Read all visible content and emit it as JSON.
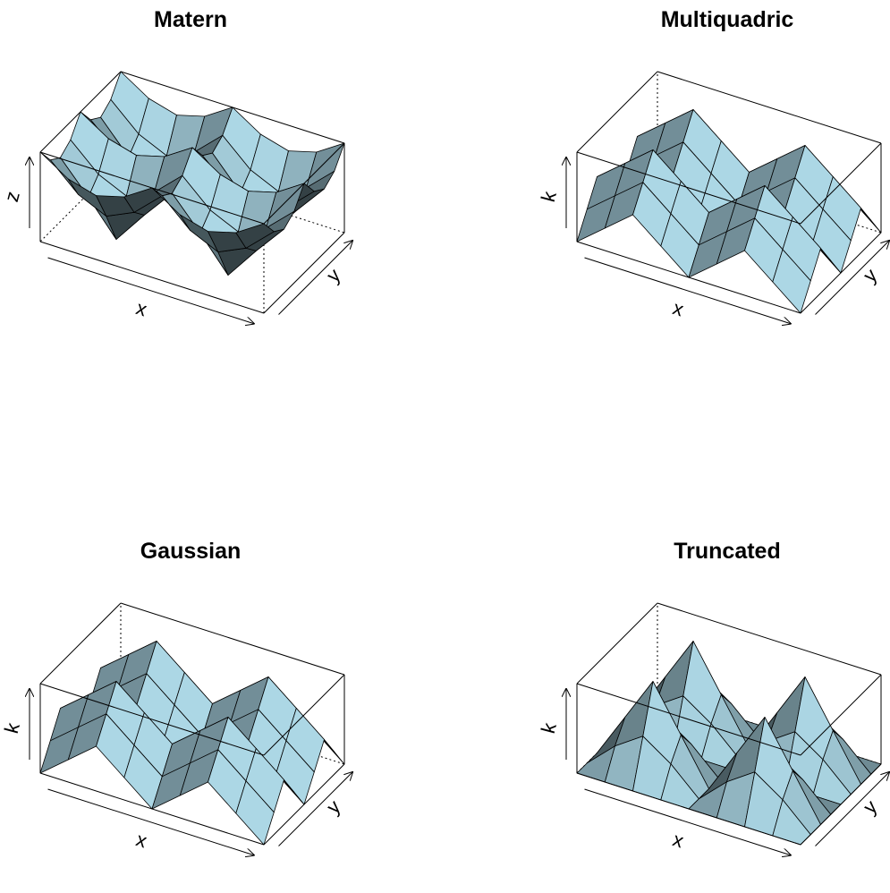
{
  "chart_data": [
    {
      "type": "surface",
      "title": "Matern",
      "xlabel": "x",
      "ylabel": "y",
      "zlabel": "z",
      "color": "#add8e6",
      "z": [
        [
          35,
          28,
          25,
          28,
          35,
          28,
          25,
          28,
          35
        ],
        [
          28,
          18,
          13,
          18,
          28,
          18,
          13,
          18,
          28
        ],
        [
          25,
          13,
          0,
          13,
          25,
          13,
          0,
          13,
          25
        ],
        [
          28,
          18,
          13,
          18,
          28,
          18,
          13,
          18,
          28
        ],
        [
          35,
          28,
          25,
          28,
          35,
          28,
          25,
          28,
          35
        ],
        [
          28,
          18,
          13,
          18,
          28,
          18,
          13,
          18,
          28
        ],
        [
          25,
          13,
          0,
          13,
          25,
          13,
          0,
          13,
          25
        ],
        [
          28,
          18,
          13,
          18,
          28,
          18,
          13,
          18,
          28
        ],
        [
          35,
          28,
          25,
          28,
          35,
          28,
          25,
          28,
          35
        ]
      ]
    },
    {
      "type": "surface",
      "title": "Multiquadric",
      "xlabel": "x",
      "ylabel": "y",
      "zlabel": "k",
      "color": "#add8e6",
      "z": [
        [
          10,
          30,
          50,
          30,
          10,
          30,
          50,
          30,
          10
        ],
        [
          30,
          50,
          70,
          50,
          30,
          50,
          70,
          50,
          30
        ],
        [
          50,
          70,
          90,
          70,
          50,
          70,
          90,
          70,
          50
        ],
        [
          30,
          50,
          70,
          50,
          30,
          50,
          70,
          50,
          30
        ],
        [
          10,
          30,
          50,
          30,
          10,
          30,
          50,
          30,
          10
        ],
        [
          30,
          50,
          70,
          50,
          30,
          50,
          70,
          50,
          30
        ],
        [
          50,
          70,
          90,
          70,
          50,
          70,
          90,
          70,
          50
        ],
        [
          30,
          50,
          70,
          50,
          30,
          50,
          70,
          50,
          30
        ],
        [
          10,
          30,
          50,
          30,
          10,
          30,
          50,
          30,
          10
        ]
      ]
    },
    {
      "type": "surface",
      "title": "Gaussian",
      "xlabel": "x",
      "ylabel": "y",
      "zlabel": "k",
      "color": "#add8e6",
      "z": [
        [
          0,
          25,
          50,
          25,
          0,
          25,
          50,
          25,
          0
        ],
        [
          25,
          50,
          75,
          50,
          25,
          50,
          75,
          50,
          25
        ],
        [
          50,
          75,
          100,
          75,
          50,
          75,
          100,
          75,
          50
        ],
        [
          25,
          50,
          75,
          50,
          25,
          50,
          75,
          50,
          25
        ],
        [
          0,
          25,
          50,
          25,
          0,
          25,
          50,
          25,
          0
        ],
        [
          25,
          50,
          75,
          50,
          25,
          50,
          75,
          50,
          25
        ],
        [
          50,
          75,
          100,
          75,
          50,
          75,
          100,
          75,
          50
        ],
        [
          25,
          50,
          75,
          50,
          25,
          50,
          75,
          50,
          25
        ],
        [
          0,
          25,
          50,
          25,
          0,
          25,
          50,
          25,
          0
        ]
      ]
    },
    {
      "type": "surface",
      "title": "Truncated",
      "xlabel": "x",
      "ylabel": "y",
      "zlabel": "k",
      "color": "#add8e6",
      "z": [
        [
          0,
          0,
          0,
          0,
          0,
          0,
          0,
          0,
          0
        ],
        [
          0,
          29,
          50,
          29,
          0,
          29,
          50,
          29,
          0
        ],
        [
          0,
          50,
          100,
          50,
          0,
          50,
          100,
          50,
          0
        ],
        [
          0,
          29,
          50,
          29,
          0,
          29,
          50,
          29,
          0
        ],
        [
          0,
          0,
          0,
          0,
          0,
          0,
          0,
          0,
          0
        ],
        [
          0,
          29,
          50,
          29,
          0,
          29,
          50,
          29,
          0
        ],
        [
          0,
          50,
          100,
          50,
          0,
          50,
          100,
          50,
          0
        ],
        [
          0,
          29,
          50,
          29,
          0,
          29,
          50,
          29,
          0
        ],
        [
          0,
          0,
          0,
          0,
          0,
          0,
          0,
          0,
          0
        ]
      ]
    }
  ]
}
